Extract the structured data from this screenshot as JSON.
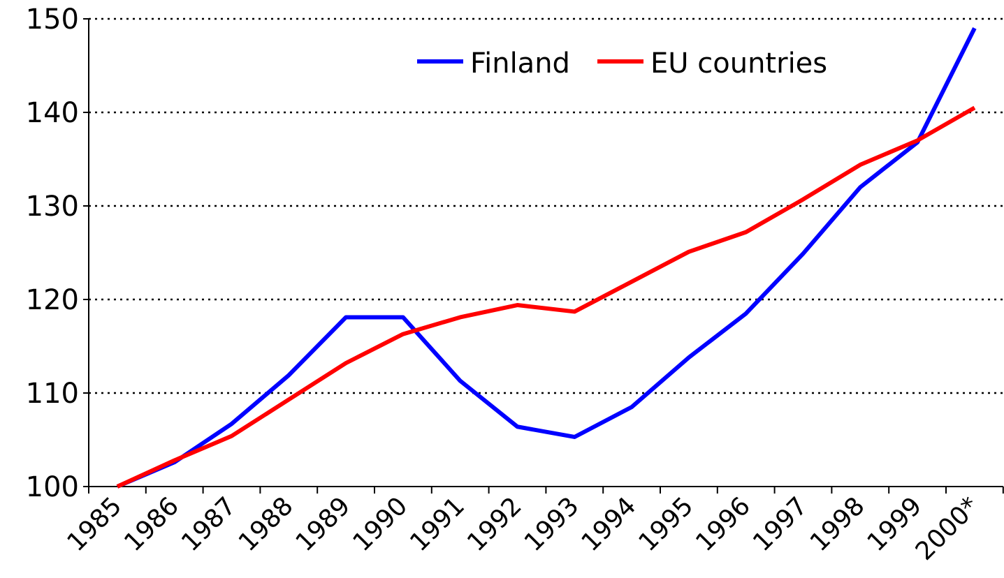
{
  "chart_data": {
    "type": "line",
    "categories": [
      "1985",
      "1986",
      "1987",
      "1988",
      "1989",
      "1990",
      "1991",
      "1992",
      "1993",
      "1994",
      "1995",
      "1996",
      "1997",
      "1998",
      "1999",
      "2000*"
    ],
    "series": [
      {
        "name": "Finland",
        "color": "#0000ff",
        "values": [
          100,
          102.6,
          106.7,
          111.9,
          118.1,
          118.1,
          111.3,
          106.4,
          105.3,
          108.5,
          113.8,
          118.5,
          124.9,
          132,
          136.8,
          149
        ]
      },
      {
        "name": "EU countries",
        "color": "#ff0000",
        "values": [
          100,
          102.8,
          105.4,
          109.3,
          113.2,
          116.3,
          118.1,
          119.4,
          118.7,
          121.9,
          125.1,
          127.2,
          130.7,
          134.4,
          137,
          140.5
        ]
      }
    ],
    "ylim": [
      100,
      150
    ],
    "yticks": [
      100,
      110,
      120,
      130,
      140,
      150
    ],
    "grid": true,
    "legend": "upper center"
  }
}
